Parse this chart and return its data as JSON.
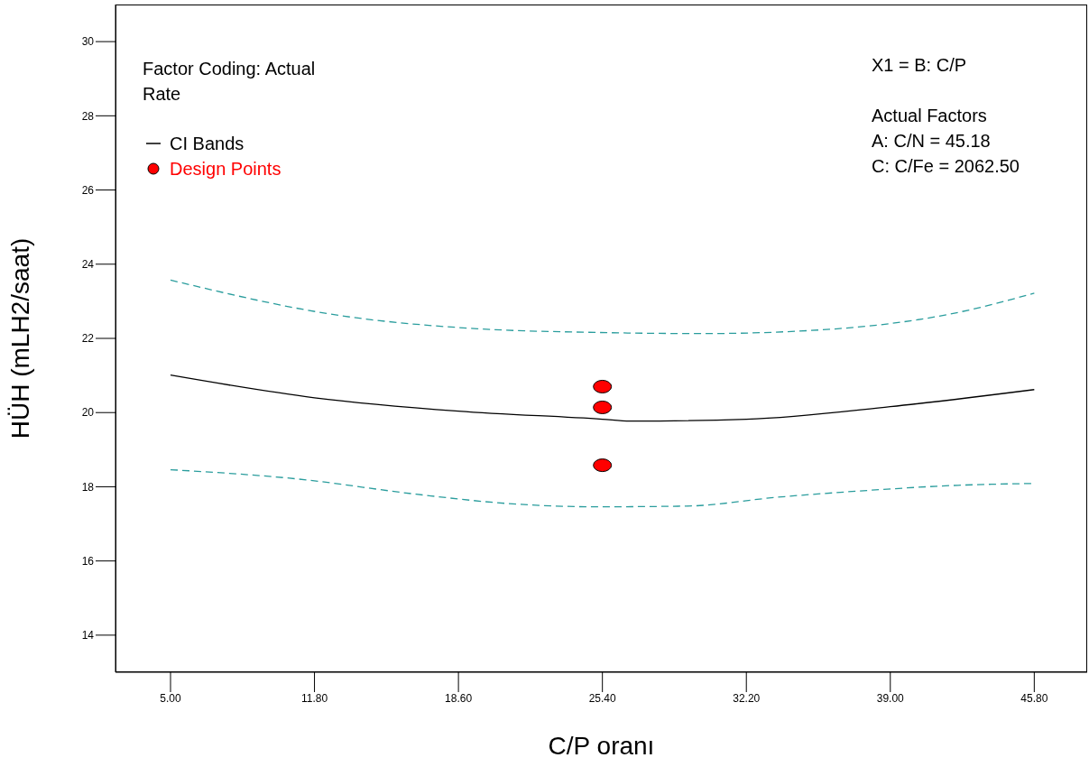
{
  "chart_data": {
    "type": "line",
    "xlabel": "C/P oranı",
    "ylabel": "HÜH (mLH2/saat)",
    "xlim": [
      2.4,
      48.3
    ],
    "ylim": [
      13,
      31
    ],
    "xticks": [
      {
        "value": 5,
        "label": "5.00"
      },
      {
        "value": 11.8,
        "label": "11.80"
      },
      {
        "value": 18.6,
        "label": "18.60"
      },
      {
        "value": 25.4,
        "label": "25.40"
      },
      {
        "value": 32.2,
        "label": "32.20"
      },
      {
        "value": 39,
        "label": "39.00"
      },
      {
        "value": 45.8,
        "label": "45.80"
      }
    ],
    "yticks": [
      14,
      16,
      18,
      20,
      22,
      24,
      26,
      28,
      30
    ],
    "grid": false,
    "legend": "top left",
    "series": [
      {
        "name": "CI Bands",
        "color": "#000000",
        "line_style": "solid",
        "marker": "none",
        "x": [
          5,
          11.8,
          18.6,
          25.4,
          26.7,
          32.2,
          39,
          45.8
        ],
        "values": [
          21.01,
          20.4,
          20.04,
          19.82,
          19.77,
          19.82,
          20.16,
          20.62
        ]
      },
      {
        "color": "#2a9d9d",
        "line_style": "dashed",
        "marker": "none",
        "x": [
          5,
          13.2,
          19.5,
          25.1,
          30.2,
          36.5,
          42.2,
          45.8
        ],
        "values": [
          23.57,
          22.6,
          22.26,
          22.16,
          22.13,
          22.26,
          22.7,
          23.22
        ]
      },
      {
        "color": "#2a9d9d",
        "line_style": "dashed",
        "marker": "none",
        "x": [
          5,
          11,
          16.6,
          20.9,
          25.1,
          29.4,
          33.7,
          37.9,
          42.2,
          45.8
        ],
        "values": [
          18.46,
          18.21,
          17.8,
          17.55,
          17.46,
          17.48,
          17.72,
          17.9,
          18.04,
          18.09
        ]
      },
      {
        "name": "Design Points",
        "type": "scatter",
        "color": "#ff0000",
        "marker": "circle",
        "x": [
          25.4,
          25.4,
          25.4
        ],
        "values": [
          20.7,
          20.14,
          18.58
        ]
      }
    ],
    "annotations": [
      "Factor Coding: Actual",
      "Rate",
      "X1 = B: C/P",
      "Actual Factors",
      "A: C/N = 45.18",
      "C: C/Fe = 2062.50"
    ]
  }
}
